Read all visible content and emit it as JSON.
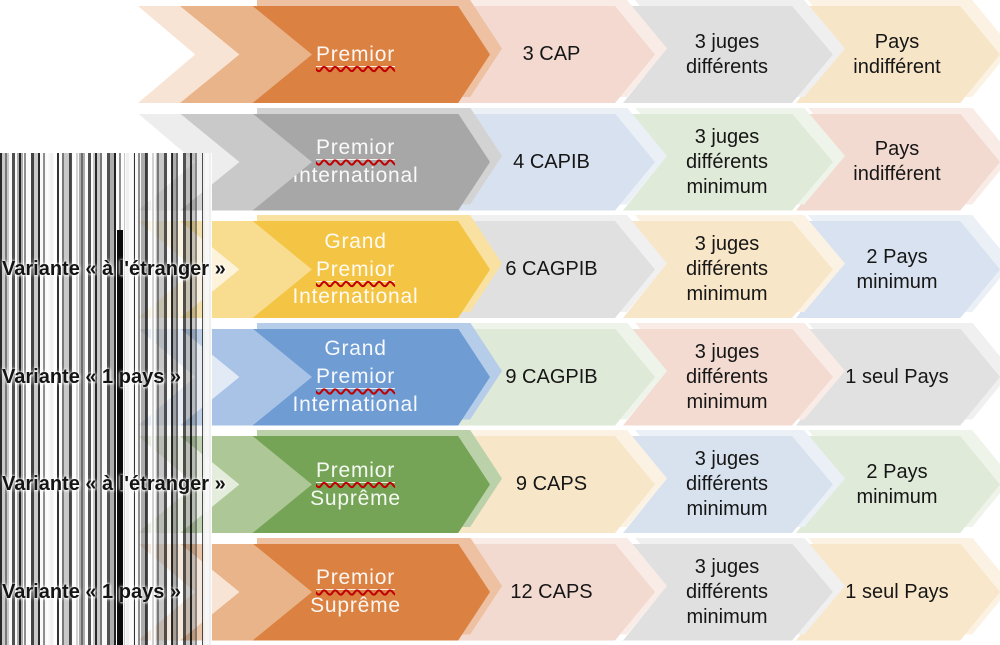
{
  "diagram": {
    "description": "Process diagram of cat show titles with certificate, judge and country requirements",
    "misspelling_underline_color": "#C00000",
    "rows": [
      {
        "id": "premior",
        "title_lines": [
          {
            "text": "Premior",
            "misspelled": true
          }
        ],
        "variant_label": "",
        "colors": {
          "main": "#DB8243",
          "shadow": "#EDC1A1",
          "band_light": "#F8E4D4",
          "band_mid": "#E9B489"
        },
        "cells": [
          {
            "text": "3 CAP",
            "fill": "#F3D9CF",
            "fill_light": "#F9ECE7"
          },
          {
            "text": "3 juges différents",
            "fill": "#E0DFDF",
            "fill_light": "#F0EFEF"
          },
          {
            "text": "Pays indifférent",
            "fill": "#F7E5C7",
            "fill_light": "#FBF2E3"
          }
        ]
      },
      {
        "id": "premior-international",
        "title_lines": [
          {
            "text": "Premior",
            "misspelled": true
          },
          {
            "text": "International",
            "misspelled": false
          }
        ],
        "variant_label": "",
        "colors": {
          "main": "#A7A7A7",
          "shadow": "#D3D3D3",
          "band_light": "#EDEDED",
          "band_mid": "#C9C9C9"
        },
        "cells": [
          {
            "text": "4 CAPIB",
            "fill": "#D8E1EF",
            "fill_light": "#EBF0F7"
          },
          {
            "text": "3 juges différents minimum",
            "fill": "#DFEAD8",
            "fill_light": "#EFF4EB"
          },
          {
            "text": "Pays indifférent",
            "fill": "#F3DAD1",
            "fill_light": "#F9ECE7"
          }
        ]
      },
      {
        "id": "grand-premior-international-etranger",
        "title_lines": [
          {
            "text": "Grand",
            "misspelled": false
          },
          {
            "text": "Premior",
            "misspelled": true
          },
          {
            "text": "International",
            "misspelled": false
          }
        ],
        "variant_label": "Variante « à l'étranger »",
        "colors": {
          "main": "#F4C444",
          "shadow": "#F9E1A1",
          "band_light": "#FDF3DA",
          "band_mid": "#F8DC8F"
        },
        "cells": [
          {
            "text": "6 CAGPIB",
            "fill": "#E0E0E0",
            "fill_light": "#F0F0F0"
          },
          {
            "text": "3 juges différents minimum",
            "fill": "#F8E6C8",
            "fill_light": "#FBF2E3"
          },
          {
            "text": "2 Pays minimum",
            "fill": "#D9E2F0",
            "fill_light": "#EBF0F7"
          }
        ]
      },
      {
        "id": "grand-premior-international-1pays",
        "title_lines": [
          {
            "text": "Grand",
            "misspelled": false
          },
          {
            "text": "Premior",
            "misspelled": true
          },
          {
            "text": "International",
            "misspelled": false
          }
        ],
        "variant_label": "Variante « 1 pays »",
        "colors": {
          "main": "#6E9CD3",
          "shadow": "#B6CDE9",
          "band_light": "#E2EAF6",
          "band_mid": "#A8C3E5"
        },
        "cells": [
          {
            "text": "9 CAGPIB",
            "fill": "#DFE9D7",
            "fill_light": "#EFF4EB"
          },
          {
            "text": "3 juges différents minimum",
            "fill": "#F3DBD2",
            "fill_light": "#F9ECE7"
          },
          {
            "text": "1 seul Pays",
            "fill": "#E1E1E1",
            "fill_light": "#F0F0F0"
          }
        ]
      },
      {
        "id": "premior-supreme-etranger",
        "title_lines": [
          {
            "text": "Premior",
            "misspelled": true
          },
          {
            "text": "Suprême",
            "misspelled": false
          }
        ],
        "variant_label": "Variante « à l'étranger »",
        "colors": {
          "main": "#76A456",
          "shadow": "#BAD1AA",
          "band_light": "#E4EDDC",
          "band_mid": "#ADC796"
        },
        "cells": [
          {
            "text": "9 CAPS",
            "fill": "#F8E6C9",
            "fill_light": "#FBF2E3"
          },
          {
            "text": "3 juges différents minimum",
            "fill": "#D8E2EF",
            "fill_light": "#EBF0F7"
          },
          {
            "text": "2 Pays minimum",
            "fill": "#DFEAD8",
            "fill_light": "#EFF4EB"
          }
        ]
      },
      {
        "id": "premior-supreme-1pays",
        "title_lines": [
          {
            "text": "Premior",
            "misspelled": true
          },
          {
            "text": "Suprême",
            "misspelled": false
          }
        ],
        "variant_label": "Variante « 1 pays »",
        "colors": {
          "main": "#DB8243",
          "shadow": "#EDC1A1",
          "band_light": "#F8E4D4",
          "band_mid": "#E9B489"
        },
        "cells": [
          {
            "text": "12 CAPS",
            "fill": "#F3DAD1",
            "fill_light": "#F9ECE7"
          },
          {
            "text": "3 juges différents minimum",
            "fill": "#E0E0E0",
            "fill_light": "#F0F0F0"
          },
          {
            "text": "1 seul Pays",
            "fill": "#F8E7CA",
            "fill_light": "#FBF2E3"
          }
        ]
      }
    ]
  }
}
